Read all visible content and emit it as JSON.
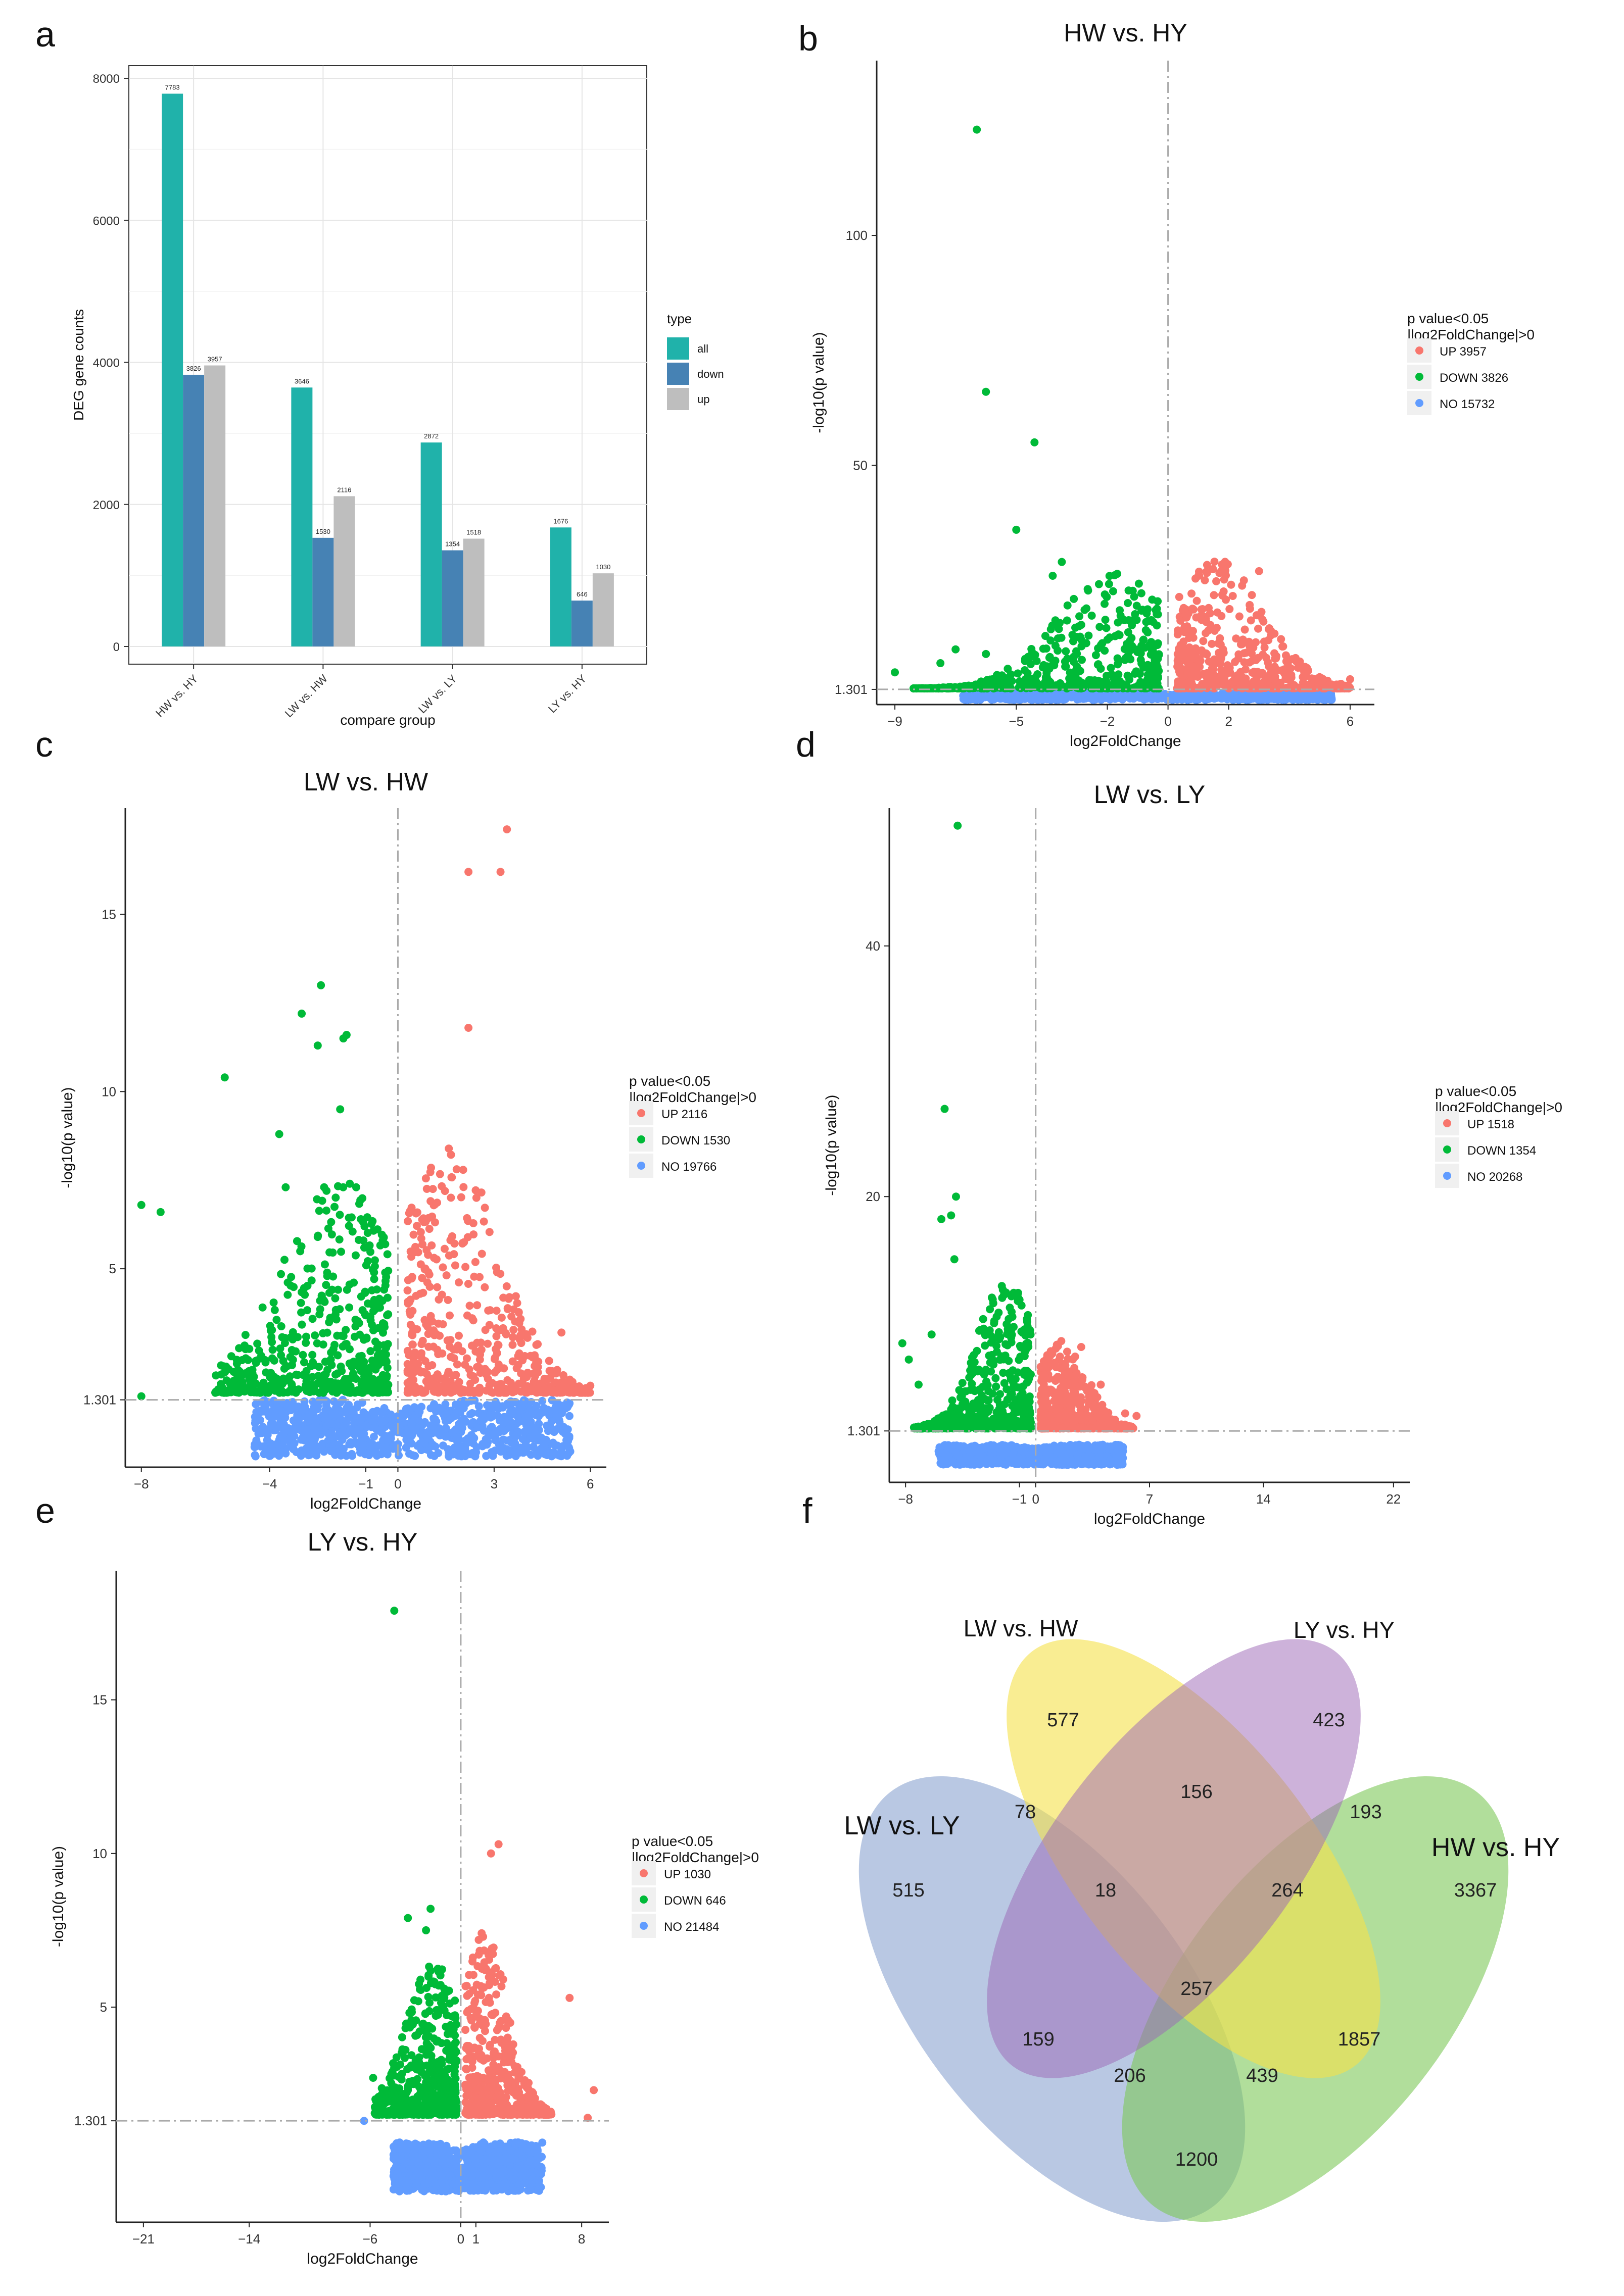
{
  "colors": {
    "all": "#20b2aa",
    "down": "#4682b4",
    "up": "#bebebe",
    "vol_up": "#f8766d",
    "vol_down": "#00ba38",
    "vol_no": "#619cff",
    "venn_lw_ly": "#7f9bcc",
    "venn_lw_hw": "#f5e14a",
    "venn_ly_hy": "#9c66b5",
    "venn_hw_hy": "#7dc858"
  },
  "chart_data": [
    {
      "panel": "a",
      "type": "bar",
      "title": "",
      "xlabel": "compare group",
      "ylabel": "DEG gene counts",
      "ylim": [
        0,
        8000
      ],
      "yticks": [
        0,
        2000,
        4000,
        6000,
        8000
      ],
      "categories": [
        "HW vs. HY",
        "LW vs. HW",
        "LW vs. LY",
        "LY vs. HY"
      ],
      "legend_title": "type",
      "series": [
        {
          "name": "all",
          "color_key": "all",
          "values": [
            7783,
            3646,
            2872,
            1676
          ]
        },
        {
          "name": "down",
          "color_key": "down",
          "values": [
            3826,
            1530,
            1354,
            646
          ]
        },
        {
          "name": "up",
          "color_key": "up",
          "values": [
            3957,
            2116,
            1518,
            1030
          ]
        }
      ]
    },
    {
      "panel": "b",
      "type": "scatter",
      "title": "HW vs. HY",
      "xlabel": "log2FoldChange",
      "ylabel": "-log10(p value)",
      "xlim": [
        -9.6,
        6.8
      ],
      "ylim": [
        -2,
        138
      ],
      "xticks": [
        -9,
        -5,
        -2,
        0,
        2,
        6
      ],
      "yticks": [
        1.301,
        50,
        100
      ],
      "ytick_labels": [
        "1.301",
        "50",
        "100"
      ],
      "legend_title": "p value<0.05\n|log2FoldChange|>0",
      "legend": [
        {
          "label": "UP 3957",
          "color_key": "vol_up"
        },
        {
          "label": "DOWN 3826",
          "color_key": "vol_down"
        },
        {
          "label": "NO 15732",
          "color_key": "vol_no"
        }
      ],
      "maxLfc": 6,
      "maxDown": 9,
      "upH": 28,
      "downH": 26,
      "noH": 1.3,
      "outliers": [
        [
          -6.3,
          123
        ],
        [
          -6,
          66
        ],
        [
          -4.4,
          55
        ],
        [
          -5,
          36
        ],
        [
          -9,
          5
        ],
        [
          -7.5,
          7
        ],
        [
          -7,
          10
        ],
        [
          -6,
          9
        ],
        [
          -3.5,
          29
        ],
        [
          -3.8,
          26
        ],
        [
          3,
          27
        ],
        [
          2.5,
          25
        ],
        [
          6,
          3.5
        ],
        [
          5.7,
          2.5
        ]
      ]
    },
    {
      "panel": "c",
      "type": "scatter",
      "title": "LW vs. HW",
      "xlabel": "log2FoldChange",
      "ylabel": "-log10(p value)",
      "xlim": [
        -8.5,
        6.5
      ],
      "ylim": [
        -0.6,
        18
      ],
      "xticks": [
        -8,
        -4,
        -1,
        0,
        3,
        6
      ],
      "yticks": [
        1.301,
        5,
        10,
        15
      ],
      "ytick_labels": [
        "1.301",
        "5",
        "10",
        "15"
      ],
      "legend_title": "p value<0.05\n|log2FoldChange|>0",
      "legend": [
        {
          "label": "UP 2116",
          "color_key": "vol_up"
        },
        {
          "label": "DOWN 1530",
          "color_key": "vol_down"
        },
        {
          "label": "NO 19766",
          "color_key": "vol_no"
        }
      ],
      "maxLfc": 6,
      "maxDown": 6,
      "upH": 7,
      "downH": 6,
      "noH": 1.3,
      "outliers": [
        [
          3.4,
          17.4
        ],
        [
          3.2,
          16.2
        ],
        [
          2.2,
          16.2
        ],
        [
          2.2,
          11.8
        ],
        [
          -2.4,
          13
        ],
        [
          -3,
          12.2
        ],
        [
          -1.6,
          11.6
        ],
        [
          -1.7,
          11.5
        ],
        [
          -2.5,
          11.3
        ],
        [
          -1.8,
          9.5
        ],
        [
          -5.4,
          10.4
        ],
        [
          -3.7,
          8.8
        ],
        [
          -8,
          6.8
        ],
        [
          -7.4,
          6.6
        ],
        [
          -3.5,
          7.3
        ],
        [
          -2.3,
          7.3
        ],
        [
          -1.5,
          7.4
        ],
        [
          -1.3,
          7.3
        ],
        [
          4.2,
          2.5
        ],
        [
          5.1,
          3.2
        ],
        [
          6,
          1.7
        ],
        [
          -8,
          1.4
        ]
      ]
    },
    {
      "panel": "d",
      "type": "scatter",
      "title": "LW vs. LY",
      "xlabel": "log2FoldChange",
      "ylabel": "-log10(p value)",
      "xlim": [
        -9,
        23
      ],
      "ylim": [
        -2.8,
        51
      ],
      "xticks": [
        -8,
        -1,
        0,
        7,
        14,
        22
      ],
      "yticks": [
        1.301,
        20,
        40
      ],
      "ytick_labels": [
        "1.301",
        "20",
        "40"
      ],
      "legend_title": "p value<0.05\n|log2FoldChange|>0",
      "legend": [
        {
          "label": "UP 1518",
          "color_key": "vol_up"
        },
        {
          "label": "DOWN 1354",
          "color_key": "vol_down"
        },
        {
          "label": "NO 20268",
          "color_key": "vol_no"
        }
      ],
      "maxLfc": 6,
      "maxDown": 8,
      "upH": 7,
      "downH": 12,
      "noH": 1.3,
      "outliers": [
        [
          -4.8,
          49.6
        ],
        [
          -5.6,
          27
        ],
        [
          -5.8,
          18.2
        ],
        [
          -5.2,
          18.5
        ],
        [
          -4.9,
          20
        ],
        [
          -5,
          15
        ],
        [
          -8.2,
          8.3
        ],
        [
          -7.8,
          7
        ],
        [
          -7.2,
          5
        ],
        [
          -6.4,
          9
        ],
        [
          -6,
          2.3
        ],
        [
          2.8,
          8
        ],
        [
          4,
          5
        ],
        [
          5.5,
          2.7
        ],
        [
          6.2,
          2.5
        ]
      ]
    },
    {
      "panel": "e",
      "type": "scatter",
      "title": "LY vs. HY",
      "xlabel": "log2FoldChange",
      "ylabel": "-log10(p value)",
      "xlim": [
        -22.8,
        9.8
      ],
      "ylim": [
        -2,
        19.2
      ],
      "xticks": [
        -21,
        -14,
        -6,
        0,
        1,
        8
      ],
      "yticks": [
        1.301,
        5,
        10,
        15
      ],
      "ytick_labels": [
        "1.301",
        "5",
        "10",
        "15"
      ],
      "legend_title": "p value<0.05\n|log2FoldChange|>0",
      "legend": [
        {
          "label": "UP 1030",
          "color_key": "vol_up"
        },
        {
          "label": "DOWN 646",
          "color_key": "vol_down"
        },
        {
          "label": "NO 21484",
          "color_key": "vol_no"
        }
      ],
      "maxLfc": 6,
      "maxDown": 6,
      "upH": 6,
      "downH": 5,
      "noH": 1.3,
      "outliers": [
        [
          -4.4,
          17.9
        ],
        [
          2.5,
          10.3
        ],
        [
          2,
          10
        ],
        [
          -2,
          8.2
        ],
        [
          -3.5,
          7.9
        ],
        [
          -2.3,
          7.5
        ],
        [
          7.2,
          5.3
        ],
        [
          8.8,
          2.3
        ],
        [
          8.4,
          1.4
        ],
        [
          -6.4,
          1.3
        ],
        [
          -5.8,
          2.7
        ]
      ]
    }
  ],
  "panel_labels": [
    "a",
    "b",
    "c",
    "d",
    "e",
    "f"
  ],
  "venn": {
    "sets": [
      {
        "name": "LW vs. LY"
      },
      {
        "name": "LW vs. HW"
      },
      {
        "name": "LY vs. HY"
      },
      {
        "name": "HW vs. HY"
      }
    ],
    "regions": [
      {
        "sets": "LW vs. HW only",
        "value": "577"
      },
      {
        "sets": "LY vs. HY only",
        "value": "423"
      },
      {
        "sets": "LW vs. HW & LY vs. HY",
        "value": "156"
      },
      {
        "sets": "LW vs. LY & LW vs. HW",
        "value": "78"
      },
      {
        "sets": "LY vs. HY & HW vs. HY",
        "value": "193"
      },
      {
        "sets": "LW vs. LY only",
        "value": "515"
      },
      {
        "sets": "LW vs. LY & LW vs. HW & LY vs. HY",
        "value": "18"
      },
      {
        "sets": "LW vs. HW & LY vs. HY & HW vs. HY",
        "value": "264"
      },
      {
        "sets": "HW vs. HY only",
        "value": "3367"
      },
      {
        "sets": "all four",
        "value": "257"
      },
      {
        "sets": "LW vs. LY & LY vs. HY",
        "value": "159"
      },
      {
        "sets": "LW vs. HW & HW vs. HY",
        "value": "1857"
      },
      {
        "sets": "LW vs. LY & LY vs. HY & HW vs. HY",
        "value": "206"
      },
      {
        "sets": "LW vs. LY & LW vs. HW & HW vs. HY",
        "value": "439"
      },
      {
        "sets": "LW vs. LY & HW vs. HY",
        "value": "1200"
      }
    ]
  }
}
